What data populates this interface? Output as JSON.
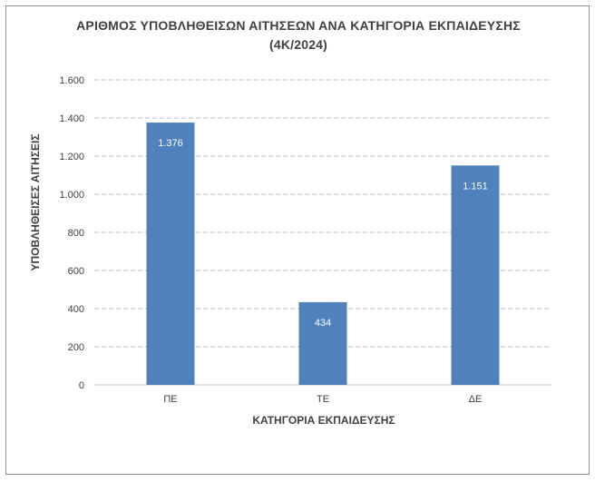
{
  "chart_data": {
    "type": "bar",
    "title_line1": "ΑΡΙΘΜΟΣ ΥΠΟΒΛΗΘΕΙΣΩΝ ΑΙΤΗΣΕΩΝ ΑΝΑ ΚΑΤΗΓΟΡΙΑ ΕΚΠΑΙΔΕΥΣΗΣ",
    "title_line2": "(4Κ/2024)",
    "xlabel": "ΚΑΤΗΓΟΡΙΑ ΕΚΠΑΙΔΕΥΣΗΣ",
    "ylabel": "ΥΠΟΒΛΗΘΕΙΣΕΣ ΑΙΤΗΣΕΙΣ",
    "categories": [
      "ΠΕ",
      "ΤΕ",
      "ΔΕ"
    ],
    "values": [
      1376,
      434,
      1151
    ],
    "data_labels": [
      "1.376",
      "434",
      "1.151"
    ],
    "ylim": [
      0,
      1600
    ],
    "yticks": [
      0,
      200,
      400,
      600,
      800,
      1000,
      1200,
      1400,
      1600
    ],
    "ytick_labels": [
      "0",
      "200",
      "400",
      "600",
      "800",
      "1.000",
      "1.200",
      "1.400",
      "1.600"
    ],
    "grid": true,
    "gridline_style": "dashed",
    "bar_color": "#4f81bd"
  }
}
